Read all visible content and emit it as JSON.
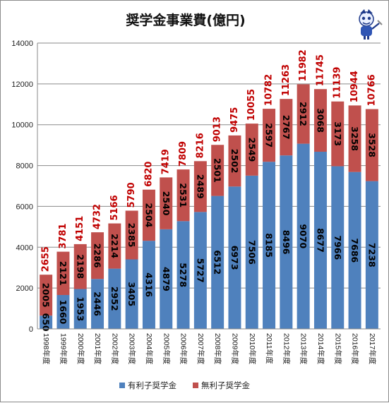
{
  "chart_data": {
    "type": "bar",
    "stacked": true,
    "title": "奨学金事業費(億円)",
    "categories": [
      "1998年度",
      "1999年度",
      "2000年度",
      "2001年度",
      "2002年度",
      "2003年度",
      "2004年度",
      "2005年度",
      "2006年度",
      "2007年度",
      "2008年度",
      "2009年度",
      "2010年度",
      "2011年度",
      "2012年度",
      "2013年度",
      "2014年度",
      "2015年度",
      "2016年度",
      "2017年度"
    ],
    "series": [
      {
        "name": "有利子奨学金",
        "color": "#4f81bd",
        "label_color": "#000000",
        "values": [
          650,
          1660,
          1953,
          2446,
          2952,
          3405,
          4316,
          4879,
          5278,
          5727,
          6512,
          6973,
          7506,
          8185,
          8496,
          9070,
          8677,
          7966,
          7686,
          7238
        ]
      },
      {
        "name": "無利子奨学金",
        "color": "#c0504d",
        "label_color": "#000000",
        "values": [
          2005,
          2121,
          2198,
          2286,
          2214,
          2385,
          2504,
          2540,
          2531,
          2489,
          2501,
          2502,
          2549,
          2597,
          2767,
          2912,
          3068,
          3173,
          3258,
          3528
        ]
      }
    ],
    "totals": [
      2655,
      3781,
      4151,
      4732,
      5166,
      5790,
      6820,
      7419,
      7809,
      8216,
      9013,
      9475,
      10055,
      10782,
      11263,
      11982,
      11745,
      11139,
      10944,
      10766
    ],
    "total_label_color": "#c00000",
    "ylim": [
      0,
      14000
    ],
    "yticks": [
      0,
      2000,
      4000,
      6000,
      8000,
      10000,
      12000,
      14000
    ],
    "grid": true,
    "legend_position": "bottom",
    "xlabel": "",
    "ylabel": ""
  },
  "mascot_icon": "mascot-character-icon"
}
